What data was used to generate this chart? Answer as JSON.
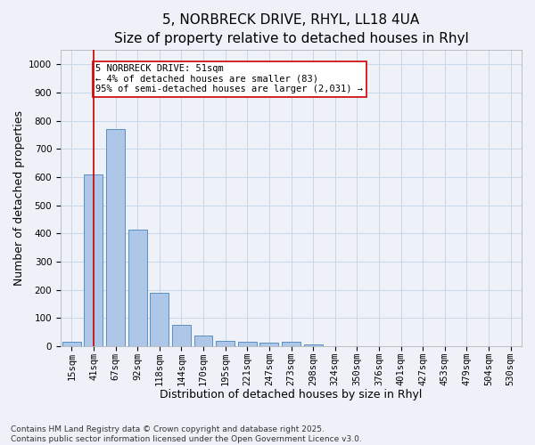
{
  "title_line1": "5, NORBRECK DRIVE, RHYL, LL18 4UA",
  "title_line2": "Size of property relative to detached houses in Rhyl",
  "xlabel": "Distribution of detached houses by size in Rhyl",
  "ylabel": "Number of detached properties",
  "categories": [
    "15sqm",
    "41sqm",
    "67sqm",
    "92sqm",
    "118sqm",
    "144sqm",
    "170sqm",
    "195sqm",
    "221sqm",
    "247sqm",
    "273sqm",
    "298sqm",
    "324sqm",
    "350sqm",
    "376sqm",
    "401sqm",
    "427sqm",
    "453sqm",
    "479sqm",
    "504sqm",
    "530sqm"
  ],
  "values": [
    15,
    610,
    770,
    415,
    190,
    75,
    38,
    18,
    15,
    12,
    15,
    5,
    0,
    0,
    0,
    0,
    0,
    0,
    0,
    0,
    0
  ],
  "bar_color": "#aec6e8",
  "bar_edge_color": "#5a8fc0",
  "grid_color": "#c8d8e8",
  "background_color": "#eef2f8",
  "vline_x": 1,
  "vline_color": "#cc0000",
  "annotation_text": "5 NORBRECK DRIVE: 51sqm\n← 4% of detached houses are smaller (83)\n95% of semi-detached houses are larger (2,031) →",
  "annotation_box_color": "#ffffff",
  "annotation_box_edge": "#cc0000",
  "ylim": [
    0,
    1050
  ],
  "yticks": [
    0,
    100,
    200,
    300,
    400,
    500,
    600,
    700,
    800,
    900,
    1000
  ],
  "footnote": "Contains HM Land Registry data © Crown copyright and database right 2025.\nContains public sector information licensed under the Open Government Licence v3.0.",
  "title_fontsize": 11,
  "subtitle_fontsize": 10,
  "axis_label_fontsize": 9,
  "tick_fontsize": 7.5,
  "annotation_fontsize": 7.5,
  "footnote_fontsize": 6.5
}
